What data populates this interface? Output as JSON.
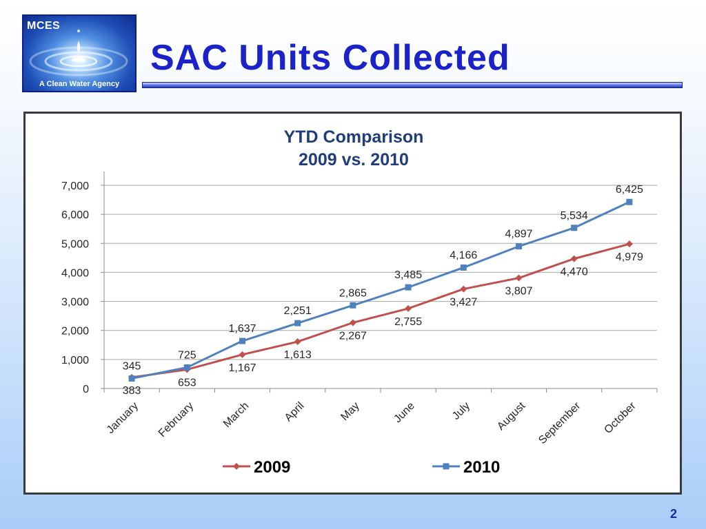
{
  "logo": {
    "acronym": "MCES",
    "tagline": "A Clean Water Agency"
  },
  "slide": {
    "title": "SAC Units Collected",
    "number": "2"
  },
  "chart_data": {
    "type": "line",
    "title_lines": [
      "YTD Comparison",
      "2009 vs. 2010"
    ],
    "categories": [
      "January",
      "February",
      "March",
      "April",
      "May",
      "June",
      "July",
      "August",
      "September",
      "October"
    ],
    "ylim": [
      0,
      7000
    ],
    "yticks": [
      0,
      1000,
      2000,
      3000,
      4000,
      5000,
      6000,
      7000
    ],
    "ytick_labels": [
      "0",
      "1,000",
      "2,000",
      "3,000",
      "4,000",
      "5,000",
      "6,000",
      "7,000"
    ],
    "grid": true,
    "legend_position": "bottom",
    "series": [
      {
        "name": "2009",
        "color": "#c0504d",
        "marker": "diamond",
        "values": [
          383,
          653,
          1167,
          1613,
          2267,
          2755,
          3427,
          3807,
          4470,
          4979
        ],
        "labels": [
          "383",
          "653",
          "1,167",
          "1,613",
          "2,267",
          "2,755",
          "3,427",
          "3,807",
          "4,470",
          "4,979"
        ],
        "label_side": "below"
      },
      {
        "name": "2010",
        "color": "#4f81bd",
        "marker": "square",
        "values": [
          345,
          725,
          1637,
          2251,
          2865,
          3485,
          4166,
          4897,
          5534,
          6425
        ],
        "labels": [
          "345",
          "725",
          "1,637",
          "2,251",
          "2,865",
          "3,485",
          "4,166",
          "4,897",
          "5,534",
          "6,425"
        ],
        "label_side": "above"
      }
    ]
  }
}
